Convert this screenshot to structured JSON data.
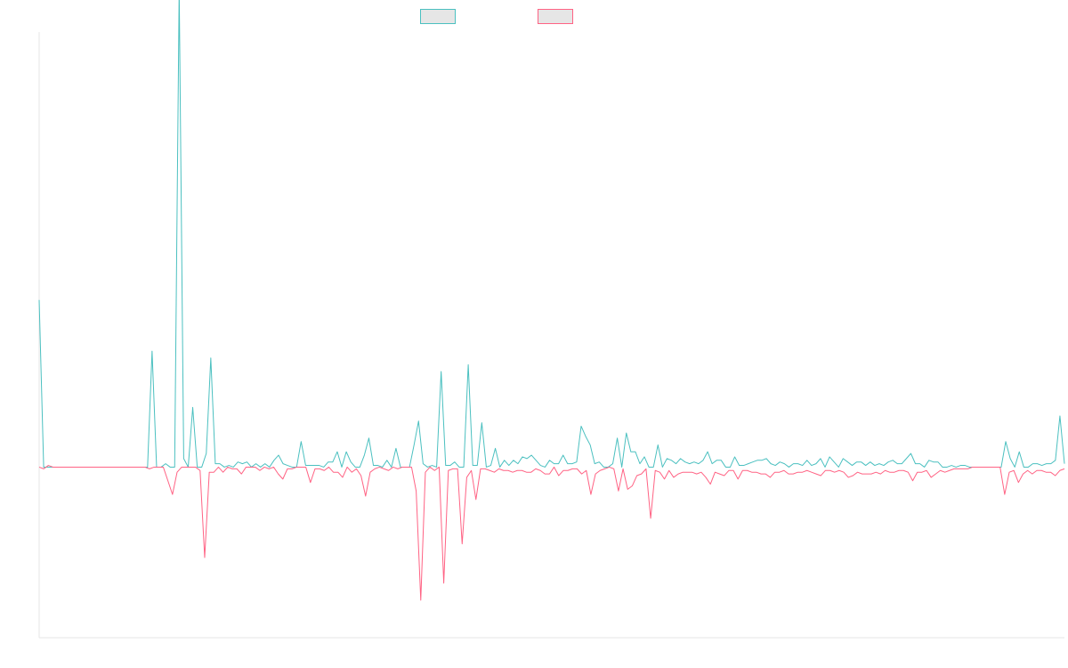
{
  "chart_data": {
    "type": "line",
    "title": "",
    "xlabel": "",
    "ylabel": "",
    "grid": false,
    "legend_position": "top-center",
    "ylim": [
      -100,
      255
    ],
    "series": [
      {
        "color": "#4bc0c0",
        "values": [
          98,
          0,
          0,
          0,
          0,
          0,
          0,
          0,
          0,
          0,
          0,
          0,
          0,
          0,
          0,
          0,
          0,
          0,
          0,
          0,
          0,
          0,
          0,
          0,
          0,
          68,
          0,
          0,
          2,
          0,
          0,
          280,
          5,
          0,
          35,
          0,
          0,
          8,
          64,
          2,
          2,
          0,
          1,
          0,
          3,
          2,
          3,
          0,
          2,
          0,
          2,
          0,
          4,
          7,
          2,
          1,
          0,
          0,
          15,
          1,
          1,
          1,
          1,
          0,
          3,
          3,
          9,
          0,
          9,
          3,
          0,
          0,
          7,
          17,
          1,
          1,
          0,
          4,
          0,
          11,
          0,
          0,
          0,
          13,
          27,
          2,
          0,
          1,
          0,
          56,
          1,
          1,
          3,
          0,
          0,
          60,
          1,
          1,
          26,
          0,
          1,
          11,
          0,
          4,
          1,
          4,
          2,
          6,
          5,
          7,
          4,
          1,
          0,
          4,
          2,
          2,
          7,
          2,
          2,
          3,
          24,
          18,
          13,
          2,
          3,
          0,
          0,
          2,
          17,
          0,
          20,
          9,
          9,
          2,
          6,
          0,
          0,
          13,
          0,
          5,
          4,
          2,
          5,
          3,
          2,
          3,
          2,
          4,
          9,
          2,
          4,
          4,
          0,
          0,
          6,
          1,
          1,
          2,
          3,
          4,
          4,
          5,
          2,
          1,
          3,
          2,
          0,
          2,
          2,
          1,
          4,
          1,
          2,
          5,
          0,
          6,
          3,
          0,
          5,
          3,
          1,
          3,
          3,
          1,
          3,
          1,
          2,
          1,
          3,
          4,
          2,
          2,
          5,
          8,
          2,
          2,
          0,
          4,
          3,
          3,
          0,
          0,
          1,
          0,
          1,
          1,
          0,
          0,
          0,
          0,
          0,
          0,
          0,
          0,
          15,
          5,
          0,
          9,
          0,
          0,
          2,
          2,
          1,
          2,
          2,
          4,
          30,
          2
        ]
      },
      {
        "color": "#ff6384",
        "values": [
          0,
          -1,
          1,
          0,
          0,
          0,
          0,
          0,
          0,
          0,
          0,
          0,
          0,
          0,
          0,
          0,
          0,
          0,
          0,
          0,
          0,
          0,
          0,
          0,
          -1,
          0,
          0,
          0,
          -8,
          -16,
          -3,
          0,
          0,
          0,
          0,
          -2,
          -53,
          -3,
          -3,
          0,
          -3,
          0,
          -1,
          -1,
          -4,
          0,
          0,
          0,
          -2,
          0,
          -1,
          0,
          -4,
          -7,
          -1,
          -1,
          0,
          0,
          0,
          -9,
          -1,
          -1,
          -2,
          0,
          -3,
          -3,
          -6,
          0,
          -3,
          -1,
          -5,
          -17,
          -3,
          -1,
          0,
          -1,
          -2,
          0,
          -1,
          0,
          0,
          0,
          -14,
          -78,
          -3,
          0,
          -2,
          0,
          -68,
          -2,
          -1,
          -1,
          -45,
          -6,
          -2,
          -19,
          -1,
          -1,
          -2,
          -3,
          -1,
          -2,
          -2,
          -3,
          -2,
          -2,
          -3,
          -3,
          -1,
          -2,
          -4,
          -4,
          0,
          -5,
          -2,
          -2,
          -1,
          -1,
          -4,
          -2,
          -16,
          -4,
          -2,
          -1,
          0,
          -1,
          -14,
          -1,
          -13,
          -11,
          -5,
          -4,
          -1,
          -30,
          -2,
          -3,
          -7,
          -2,
          -6,
          -4,
          -3,
          -3,
          -3,
          -4,
          -3,
          -6,
          -10,
          -3,
          -4,
          -5,
          -2,
          -2,
          -7,
          -2,
          -2,
          -3,
          -3,
          -4,
          -4,
          -6,
          -3,
          -3,
          -2,
          -4,
          -4,
          -3,
          -3,
          -2,
          -3,
          -4,
          -5,
          -2,
          -2,
          -3,
          -2,
          -3,
          -6,
          -5,
          -3,
          -4,
          -4,
          -4,
          -3,
          -4,
          -2,
          -3,
          -3,
          -2,
          -2,
          -3,
          -8,
          -3,
          -3,
          -2,
          -6,
          -4,
          -2,
          -3,
          -2,
          -1,
          -1,
          -1,
          -1,
          0,
          0,
          0,
          0,
          0,
          0,
          0,
          -16,
          -3,
          -2,
          -9,
          -4,
          -2,
          -4,
          -2,
          -2,
          -3,
          -3,
          -5,
          -2,
          -1
        ]
      }
    ]
  }
}
